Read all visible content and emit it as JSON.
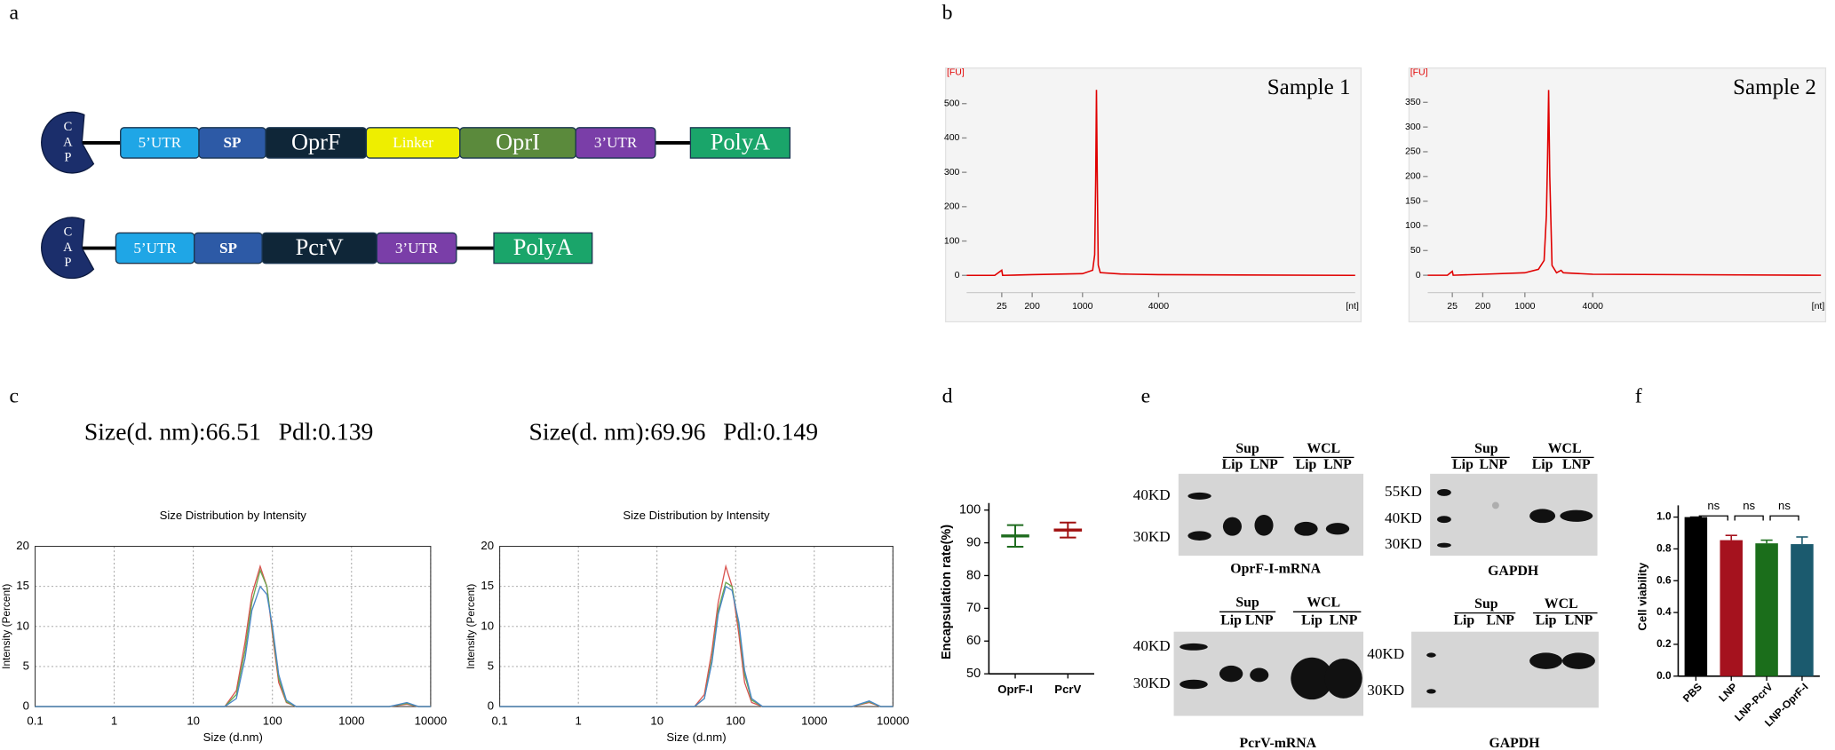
{
  "panel_labels": [
    "a",
    "b",
    "c",
    "d",
    "e",
    "f"
  ],
  "constructs": [
    {
      "cap": [
        "C",
        "A",
        "P"
      ],
      "segments": [
        {
          "label": "5’UTR",
          "color": "#1fa6e6"
        },
        {
          "label": "SP",
          "color": "#2d5aa6"
        },
        {
          "label": "OprF",
          "color": "#0f2638"
        },
        {
          "label": "Linker",
          "color": "#eeee00"
        },
        {
          "label": "OprI",
          "color": "#5b8a3c"
        },
        {
          "label": "3’UTR",
          "color": "#7a3ea8"
        }
      ],
      "polya": {
        "label": "PolyA",
        "color": "#1aa56a"
      }
    },
    {
      "cap": [
        "C",
        "A",
        "P"
      ],
      "segments": [
        {
          "label": "5’UTR",
          "color": "#1fa6e6"
        },
        {
          "label": "SP",
          "color": "#2d5aa6"
        },
        {
          "label": "PcrV",
          "color": "#0f2638"
        },
        {
          "label": "3’UTR",
          "color": "#7a3ea8"
        }
      ],
      "polya": {
        "label": "PolyA",
        "color": "#1aa56a"
      }
    }
  ],
  "dls_headers": [
    {
      "size": "Size(d. nm):66.51",
      "pdi": "Pdl:0.139"
    },
    {
      "size": "Size(d. nm):69.96",
      "pdi": "Pdl:0.149"
    }
  ],
  "blots": [
    {
      "groups": [
        "Sup",
        "WCL"
      ],
      "lanes": [
        "Lip",
        "LNP",
        "Lip",
        "LNP"
      ],
      "markers": [
        "40KD",
        "30KD"
      ],
      "caption": "OprF-I-mRNA"
    },
    {
      "groups": [
        "Sup",
        "WCL"
      ],
      "lanes": [
        "Lip",
        "LNP",
        "Lip",
        "LNP"
      ],
      "markers": [
        "55KD",
        "40KD",
        "30KD"
      ],
      "caption": "GAPDH"
    },
    {
      "groups": [
        "Sup",
        "WCL"
      ],
      "lanes": [
        "Lip",
        "LNP",
        "Lip",
        "LNP"
      ],
      "markers": [
        "40KD",
        "30KD"
      ],
      "caption": "PcrV-mRNA"
    },
    {
      "groups": [
        "Sup",
        "WCL"
      ],
      "lanes": [
        "Lip",
        "LNP",
        "Lip",
        "LNP"
      ],
      "markers": [
        "40KD",
        "30KD"
      ],
      "caption": "GAPDH"
    }
  ],
  "chart_data": [
    {
      "type": "electropherogram",
      "title": "Sample 1",
      "ylabel": "[FU]",
      "xlabel": "[nt]",
      "xlim": [
        0,
        10000
      ],
      "xticks": [
        25,
        200,
        1000,
        4000
      ],
      "ylim": [
        -50,
        590
      ],
      "yticks": [
        0,
        100,
        200,
        300,
        400,
        500
      ],
      "x": [
        0,
        20,
        25,
        30,
        200,
        1000,
        1400,
        1480,
        1520,
        1550,
        1580,
        1620,
        1700,
        2500,
        4000,
        10000
      ],
      "values": [
        0,
        0,
        15,
        0,
        2,
        5,
        15,
        60,
        280,
        540,
        300,
        30,
        8,
        4,
        2,
        0
      ],
      "color": "#e00000"
    },
    {
      "type": "electropherogram",
      "title": "Sample 2",
      "ylabel": "[FU]",
      "xlabel": "[nt]",
      "xlim": [
        0,
        10000
      ],
      "xticks": [
        25,
        200,
        1000,
        4000
      ],
      "ylim": [
        -35,
        410
      ],
      "yticks": [
        0,
        50,
        100,
        150,
        200,
        250,
        300,
        350
      ],
      "x": [
        0,
        20,
        25,
        30,
        200,
        1000,
        1600,
        1850,
        1950,
        2000,
        2050,
        2100,
        2200,
        2400,
        2600,
        2700,
        4000,
        10000
      ],
      "values": [
        0,
        0,
        8,
        0,
        2,
        5,
        12,
        30,
        120,
        230,
        375,
        200,
        20,
        5,
        10,
        5,
        2,
        0
      ],
      "color": "#e00000"
    },
    {
      "type": "line",
      "title": "Size Distribution by Intensity",
      "xlabel": "Size (d.nm)",
      "ylabel": "Intensity (Percent)",
      "x_scale": "log",
      "grid": true,
      "xlim": [
        0.1,
        10000
      ],
      "xticks": [
        0.1,
        1,
        10,
        100,
        1000,
        10000
      ],
      "ylim": [
        0,
        20
      ],
      "yticks": [
        0,
        5,
        10,
        15,
        20
      ],
      "x": [
        0.1,
        25,
        35,
        45,
        55,
        70,
        85,
        100,
        120,
        150,
        200,
        3000,
        5000,
        7000,
        10000
      ],
      "series": [
        {
          "color": "#d9534f",
          "values": [
            0,
            0,
            2,
            8,
            14,
            17.5,
            15,
            9,
            3,
            0.5,
            0,
            0,
            0.3,
            0,
            0
          ]
        },
        {
          "color": "#6aa84f",
          "values": [
            0,
            0,
            1.5,
            7,
            13,
            17,
            15,
            9.5,
            3.5,
            0.6,
            0,
            0,
            0.4,
            0,
            0
          ]
        },
        {
          "color": "#4a86c8",
          "values": [
            0,
            0,
            1,
            6,
            12,
            15,
            14,
            10,
            4,
            0.8,
            0,
            0,
            0.5,
            0,
            0
          ]
        }
      ]
    },
    {
      "type": "line",
      "title": "Size Distribution by Intensity",
      "xlabel": "Size (d.nm)",
      "ylabel": "Intensity (Percent)",
      "x_scale": "log",
      "grid": true,
      "xlim": [
        0.1,
        10000
      ],
      "xticks": [
        0.1,
        1,
        10,
        100,
        1000,
        10000
      ],
      "ylim": [
        0,
        20
      ],
      "yticks": [
        0,
        5,
        10,
        15,
        20
      ],
      "x": [
        0.1,
        30,
        40,
        50,
        60,
        75,
        90,
        110,
        130,
        160,
        220,
        3000,
        5000,
        7000,
        10000
      ],
      "series": [
        {
          "color": "#d9534f",
          "values": [
            0,
            0,
            1.5,
            7,
            13,
            17.5,
            15,
            9,
            3,
            0.5,
            0,
            0,
            0.5,
            0,
            0
          ]
        },
        {
          "color": "#6aa84f",
          "values": [
            0,
            0,
            1,
            6,
            12,
            15.5,
            15,
            10,
            4,
            0.8,
            0,
            0,
            0.6,
            0,
            0
          ]
        },
        {
          "color": "#4a86c8",
          "values": [
            0,
            0,
            1,
            5.5,
            11.5,
            15,
            14.5,
            10.5,
            4.5,
            1,
            0,
            0,
            0.7,
            0,
            0
          ]
        }
      ]
    },
    {
      "type": "errorbar",
      "ylabel": "Encapsulation rate(%)",
      "categories": [
        "OprF-I",
        "PcrV"
      ],
      "values": [
        92.1,
        93.9
      ],
      "errors": [
        3.3,
        2.3
      ],
      "colors": [
        "#1e6b1e",
        "#a01010"
      ],
      "ylim": [
        50,
        100
      ],
      "yticks": [
        50,
        60,
        70,
        80,
        90,
        100
      ]
    },
    {
      "type": "bar",
      "ylabel": "Cell viability",
      "categories": [
        "PBS",
        "LNP",
        "LNP-PcrV",
        "LNP-OprF-I"
      ],
      "values": [
        1.0,
        0.855,
        0.835,
        0.83
      ],
      "errors": [
        0,
        0.03,
        0.02,
        0.045
      ],
      "colors": [
        "#000000",
        "#a5121e",
        "#1b6e1b",
        "#1b5a6e"
      ],
      "ylim": [
        0,
        1.0
      ],
      "yticks": [
        {
          "value": 0,
          "label": "0.0"
        },
        {
          "value": 0.2,
          "label": "0.2"
        },
        {
          "value": 0.4,
          "label": "0.4"
        },
        {
          "value": 0.6,
          "label": "0.6"
        },
        {
          "value": 0.8,
          "label": "0.8"
        },
        {
          "value": 1.0,
          "label": "1.0"
        }
      ],
      "annotations": [
        "ns",
        "ns",
        "ns"
      ]
    }
  ]
}
